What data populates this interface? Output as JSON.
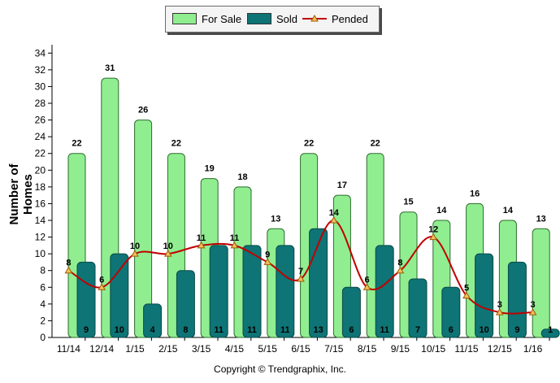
{
  "legend": {
    "for_sale": "For Sale",
    "sold": "Sold",
    "pended": "Pended"
  },
  "copyright": "Copyright © Trendgraphix, Inc.",
  "colors": {
    "for_sale": "#90ee90",
    "sold": "#0e7475",
    "pended": "#c00000",
    "marker": "#f0c060"
  },
  "chart_data": {
    "type": "bar",
    "ylabel": "Number of Homes",
    "xlabel": "",
    "ylim": [
      0,
      35
    ],
    "yticks": [
      0,
      2,
      4,
      6,
      8,
      10,
      12,
      14,
      16,
      18,
      20,
      22,
      24,
      26,
      28,
      30,
      32,
      34
    ],
    "categories": [
      "11/14",
      "12/14",
      "1/15",
      "2/15",
      "3/15",
      "4/15",
      "5/15",
      "6/15",
      "7/15",
      "8/15",
      "9/15",
      "10/15",
      "11/15",
      "12/15",
      "1/16"
    ],
    "series": [
      {
        "name": "For Sale",
        "type": "bar",
        "values": [
          22,
          31,
          26,
          22,
          19,
          18,
          13,
          22,
          17,
          22,
          15,
          14,
          16,
          14,
          13
        ]
      },
      {
        "name": "Sold",
        "type": "bar",
        "values": [
          9,
          10,
          4,
          8,
          11,
          11,
          11,
          13,
          6,
          11,
          7,
          6,
          10,
          9,
          1
        ]
      },
      {
        "name": "Pended",
        "type": "line",
        "values": [
          8,
          6,
          10,
          10,
          11,
          11,
          9,
          7,
          14,
          6,
          8,
          12,
          5,
          3,
          3
        ]
      }
    ],
    "sold_labels": [
      "9",
      "10",
      "4",
      "8",
      "11",
      "11",
      "11",
      "13",
      "6",
      "11",
      "7",
      "6",
      "10",
      "9",
      "1"
    ],
    "grid": false,
    "legend_position": "top-center"
  }
}
